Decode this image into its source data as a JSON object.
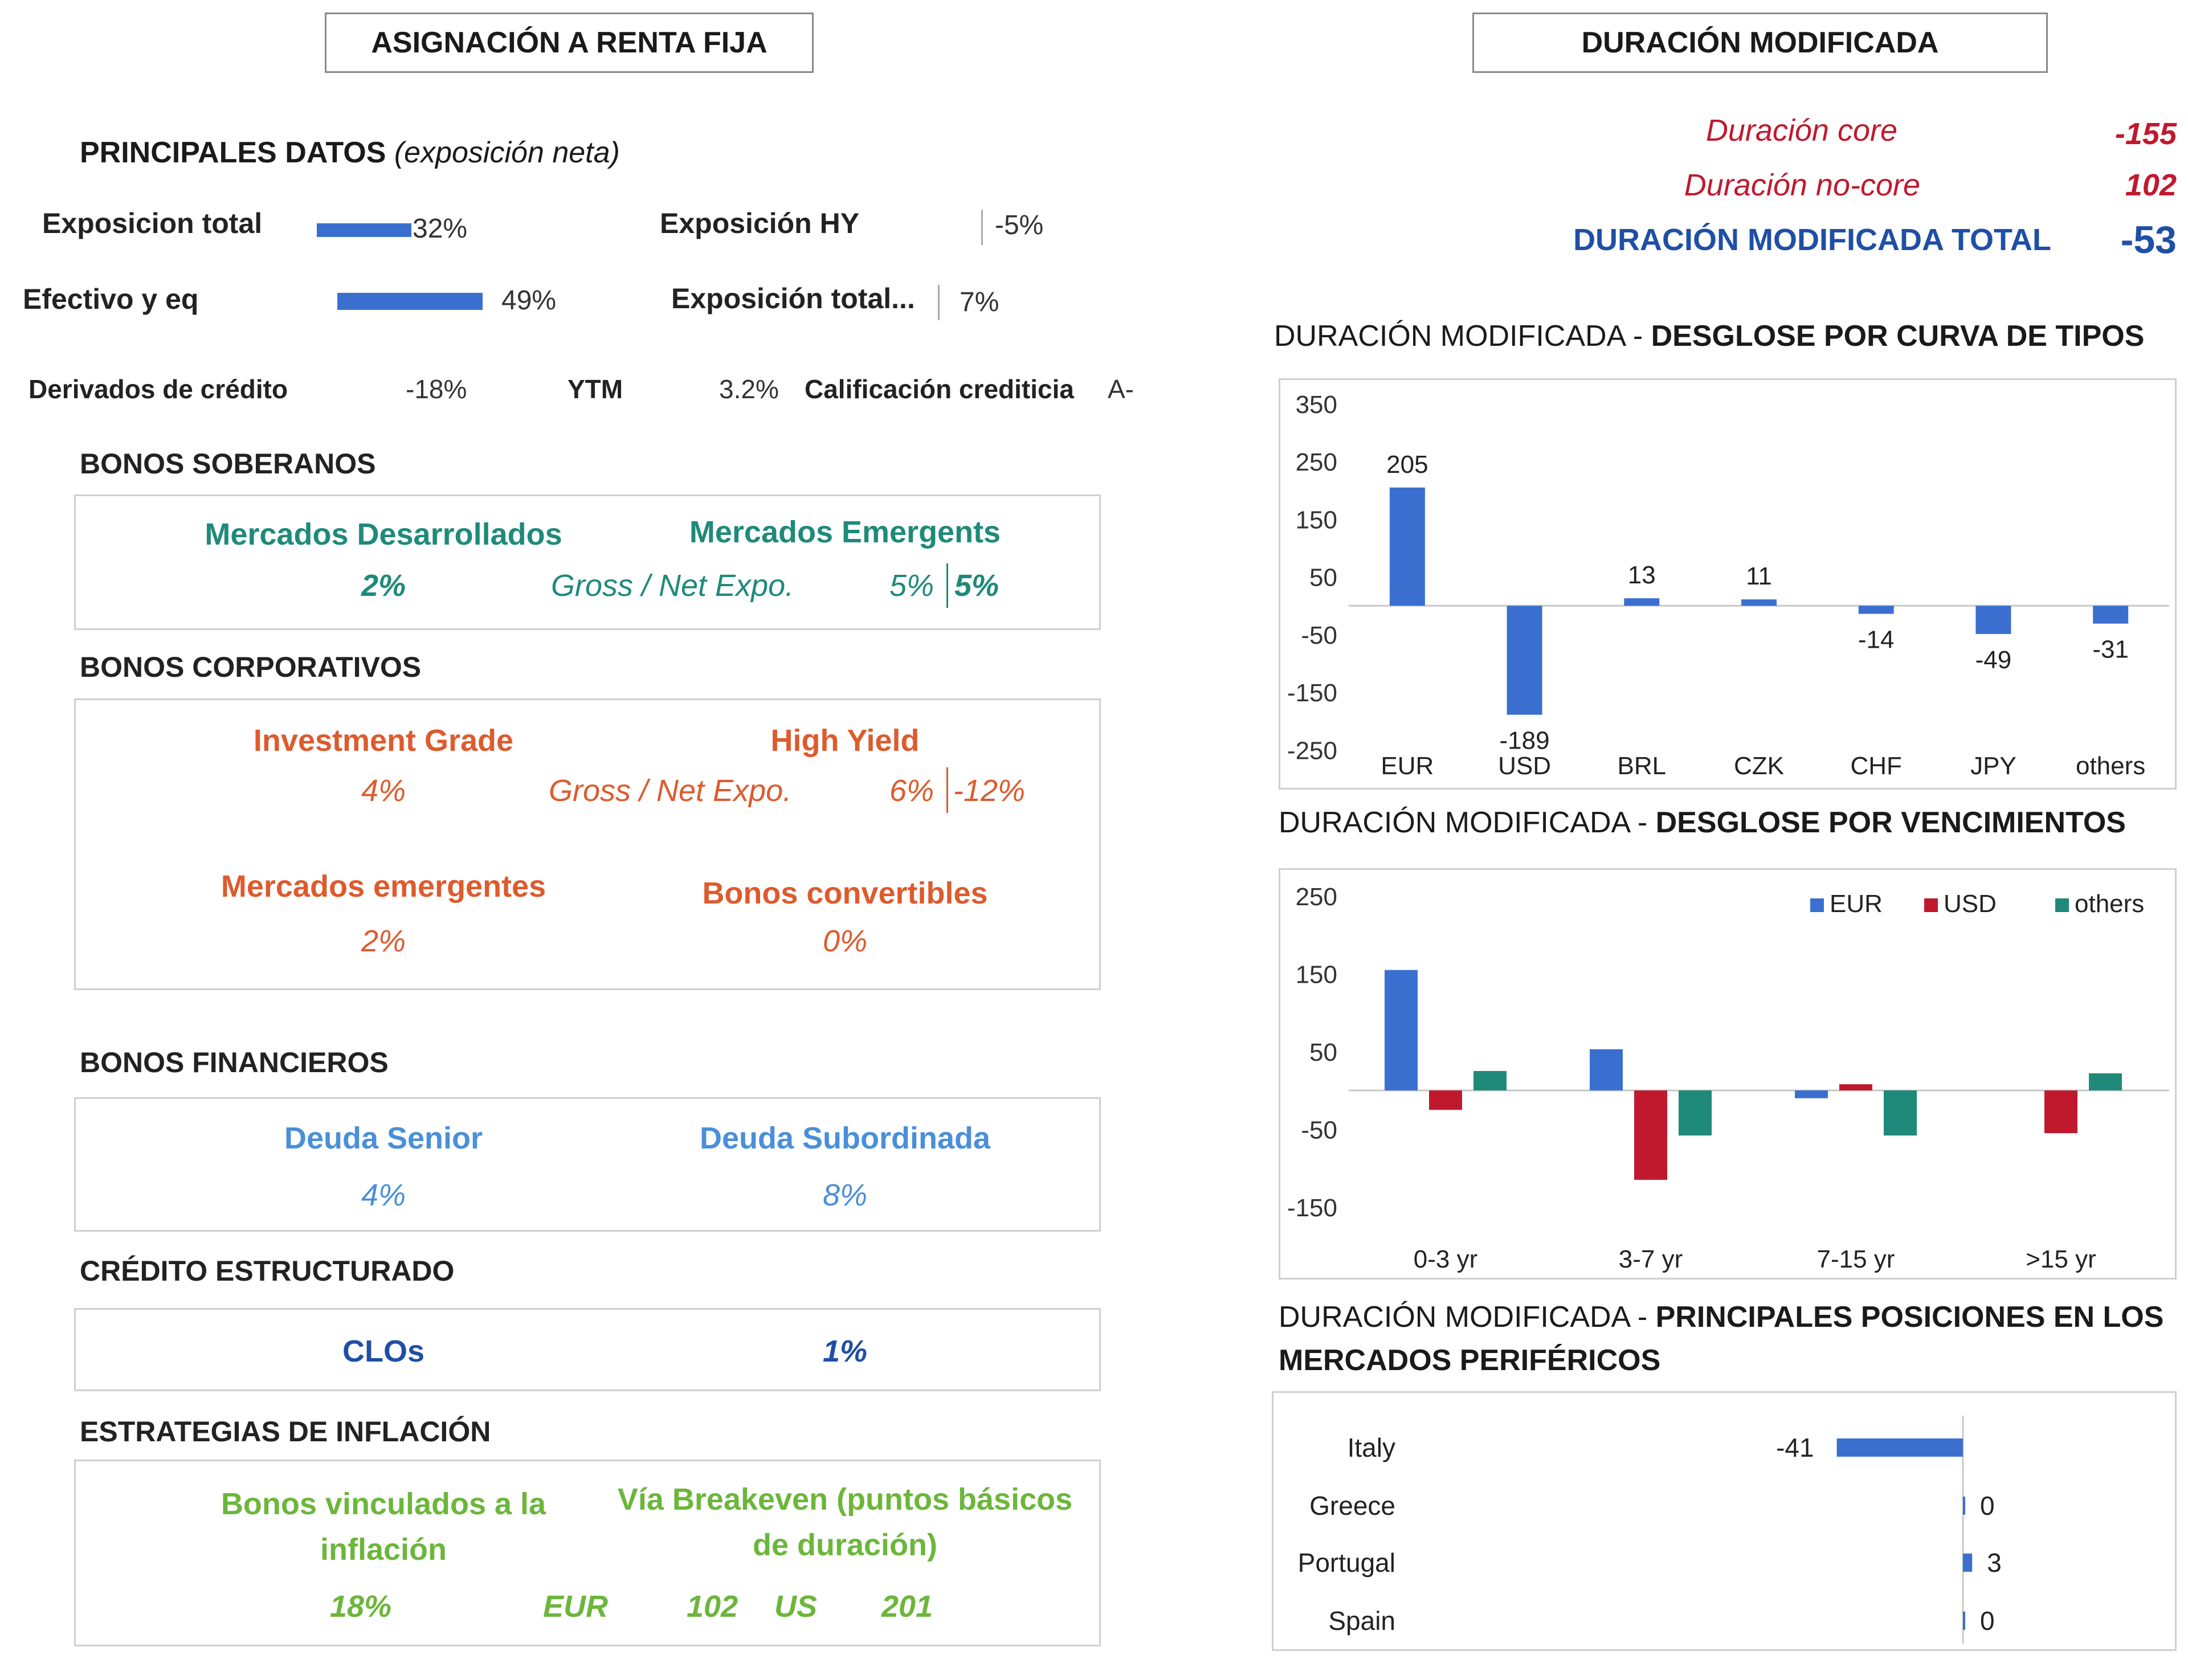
{
  "left": {
    "header": "ASIGNACIÓN A RENTA FIJA",
    "main_data": {
      "title": "PRINCIPALES DATOS",
      "subtitle": "(exposición neta)",
      "exposicion_total": {
        "label": "Exposicion total",
        "value": "32%",
        "fraction": 0.32
      },
      "efectivo": {
        "label": "Efectivo y eq",
        "value": "49%",
        "fraction": 0.49
      },
      "exposicion_hy": {
        "label": "Exposición HY",
        "value": "-5%"
      },
      "exposicion_total2": {
        "label": "Exposición total...",
        "value": "7%"
      },
      "derivados": {
        "label": "Derivados de crédito",
        "value": "-18%"
      },
      "ytm": {
        "label": "YTM",
        "value": "3.2%"
      },
      "calificacion": {
        "label": "Calificación crediticia",
        "value": "A-"
      }
    },
    "soberanos": {
      "title": "BONOS SOBERANOS",
      "desarrollados": {
        "label": "Mercados Desarrollados",
        "value": "2%"
      },
      "emergentes": {
        "label": "Mercados Emergents",
        "gross_net_label": "Gross / Net Expo.",
        "gross": "5%",
        "net": "5%"
      }
    },
    "corporativos": {
      "title": "BONOS CORPORATIVOS",
      "ig": {
        "label": "Investment Grade",
        "value": "4%"
      },
      "hy": {
        "label": "High Yield",
        "gross_net_label": "Gross / Net Expo.",
        "gross": "6%",
        "net": "-12%"
      },
      "em": {
        "label": "Mercados emergentes",
        "value": "2%"
      },
      "convertibles": {
        "label": "Bonos convertibles",
        "value": "0%"
      }
    },
    "financieros": {
      "title": "BONOS FINANCIEROS",
      "senior": {
        "label": "Deuda Senior",
        "value": "4%"
      },
      "subordinada": {
        "label": "Deuda Subordinada",
        "value": "8%"
      }
    },
    "estructurado": {
      "title": "CRÉDITO ESTRUCTURADO",
      "clos": {
        "label": "CLOs",
        "value": "1%"
      }
    },
    "inflacion": {
      "title": "ESTRATEGIAS DE INFLACIÓN",
      "vinculados": {
        "label_line1": "Bonos vinculados a la",
        "label_line2": "inflación",
        "value": "18%"
      },
      "breakeven": {
        "label_line1": "Vía Breakeven (puntos básicos",
        "label_line2": "de duración)",
        "eur_label": "EUR",
        "eur_value": "102",
        "us_label": "US",
        "us_value": "201"
      }
    }
  },
  "right": {
    "header": "DURACIÓN MODIFICADA",
    "summary": {
      "core_label": "Duración core",
      "core_value": "-155",
      "noncore_label": "Duración no-core",
      "noncore_value": "102",
      "total_label": "DURACIÓN MODIFICADA TOTAL",
      "total_value": "-53"
    },
    "chart1_title_a": "DURACIÓN MODIFICADA - ",
    "chart1_title_b": "DESGLOSE POR CURVA DE TIPOS",
    "chart2_title_a": "DURACIÓN MODIFICADA - ",
    "chart2_title_b": "DESGLOSE POR VENCIMIENTOS",
    "chart3_title_a": "DURACIÓN MODIFICADA - ",
    "chart3_title_b": "PRINCIPALES POSICIONES EN LOS",
    "chart3_title_c": "MERCADOS PERIFÉRICOS"
  },
  "colors": {
    "eur": "#3a6fd0",
    "usd": "#c0192e",
    "others": "#1f8a7a"
  },
  "chart_data": [
    {
      "type": "bar",
      "title": "DURACIÓN MODIFICADA - DESGLOSE POR CURVA DE TIPOS",
      "categories": [
        "EUR",
        "USD",
        "BRL",
        "CZK",
        "CHF",
        "JPY",
        "others"
      ],
      "values": [
        205,
        -189,
        13,
        11,
        -14,
        -49,
        -31
      ],
      "data_labels": [
        "205",
        "-189",
        "13",
        "11",
        "-14",
        "-49",
        "-31"
      ],
      "yticks": [
        350,
        250,
        150,
        50,
        -50,
        -150,
        -250
      ],
      "ytick_labels": [
        "350",
        "250",
        "150",
        "50",
        "-50",
        "-150",
        "-250"
      ],
      "ylim": [
        -300,
        350
      ]
    },
    {
      "type": "bar",
      "title": "DURACIÓN MODIFICADA - DESGLOSE POR VENCIMIENTOS",
      "categories": [
        "0-3 yr",
        "3-7 yr",
        "7-15 yr",
        ">15 yr"
      ],
      "series": [
        {
          "name": "EUR",
          "values": [
            155,
            53,
            -10,
            0
          ]
        },
        {
          "name": "USD",
          "values": [
            -25,
            -115,
            8,
            -55
          ]
        },
        {
          "name": "others",
          "values": [
            25,
            -58,
            -58,
            22
          ]
        }
      ],
      "yticks": [
        250,
        150,
        50,
        -50,
        -150
      ],
      "ytick_labels": [
        "250",
        "150",
        "50",
        "-50",
        "-150"
      ],
      "ylim": [
        -200,
        250
      ],
      "legend": "top-right"
    },
    {
      "type": "bar",
      "orientation": "horizontal",
      "title": "DURACIÓN MODIFICADA - PRINCIPALES POSICIONES EN LOS MERCADOS PERIFÉRICOS",
      "categories": [
        "Italy",
        "Greece",
        "Portugal",
        "Spain"
      ],
      "values": [
        -41,
        0,
        3,
        0
      ],
      "data_labels": [
        "-41",
        "0",
        "3",
        "0"
      ],
      "xlim": [
        -50,
        50
      ]
    }
  ]
}
